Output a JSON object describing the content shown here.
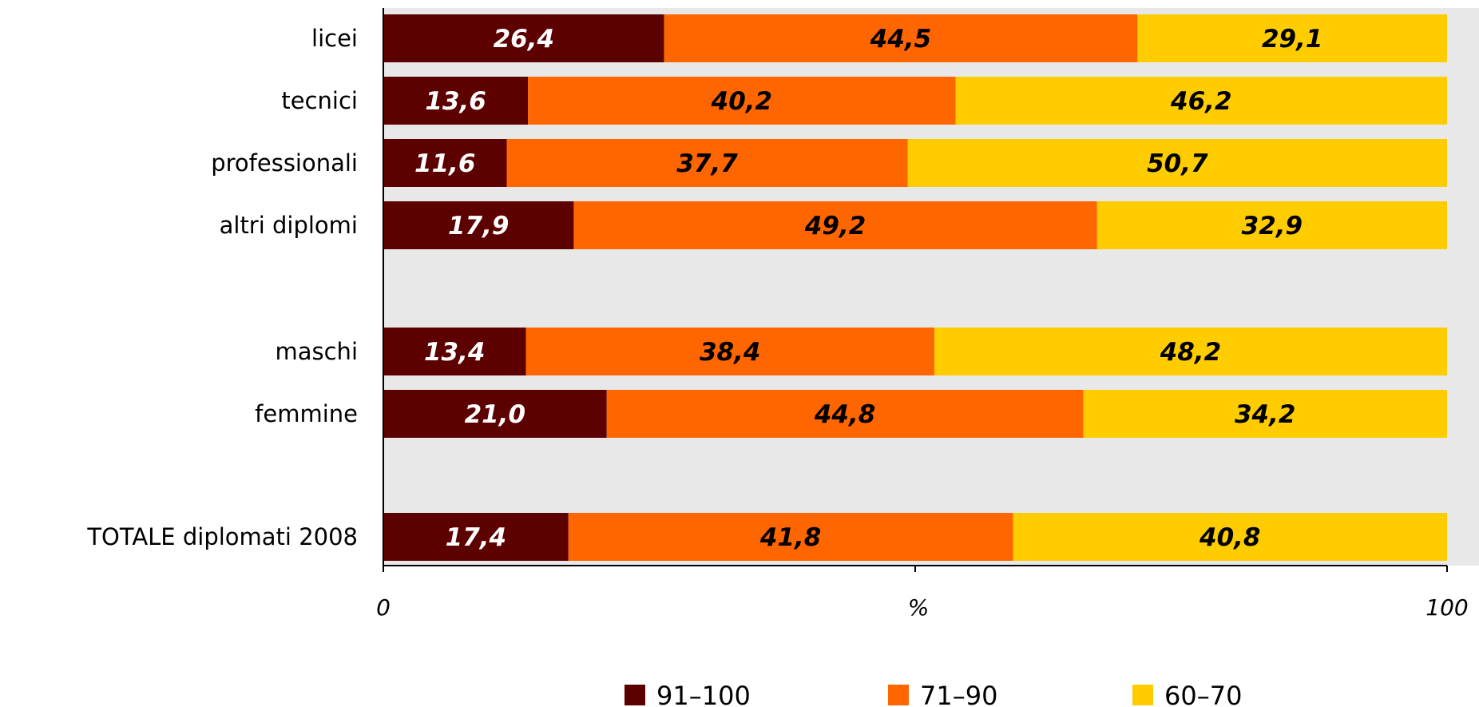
{
  "chart_data": {
    "type": "bar",
    "orientation": "horizontal",
    "stacked": true,
    "categories": [
      "licei",
      "tecnici",
      "professionali",
      "altri diplomi",
      "maschi",
      "femmine",
      "TOTALE diplomati 2008"
    ],
    "groups": [
      4,
      2,
      1
    ],
    "series": [
      {
        "name": "91–100",
        "color": "#5c0000",
        "values": [
          26.4,
          13.6,
          11.6,
          17.9,
          13.4,
          21.0,
          17.4
        ],
        "labels": [
          "26,4",
          "13,6",
          "11,6",
          "17,9",
          "13,4",
          "21,0",
          "17,4"
        ]
      },
      {
        "name": "71–90",
        "color": "#ff6600",
        "values": [
          44.5,
          40.2,
          37.7,
          49.2,
          38.4,
          44.8,
          41.8
        ],
        "labels": [
          "44,5",
          "40,2",
          "37,7",
          "49,2",
          "38,4",
          "44,8",
          "41,8"
        ]
      },
      {
        "name": "60–70",
        "color": "#ffcc00",
        "values": [
          29.1,
          46.2,
          50.7,
          32.9,
          48.2,
          34.2,
          40.8
        ],
        "labels": [
          "29,1",
          "46,2",
          "50,7",
          "32,9",
          "48,2",
          "34,2",
          "40,8"
        ]
      }
    ],
    "xlim": [
      0,
      100
    ],
    "x_ticks": [
      "0",
      "100"
    ],
    "xlabel": "%",
    "plot_background": "#e8e8e8",
    "legend_position": "bottom"
  }
}
